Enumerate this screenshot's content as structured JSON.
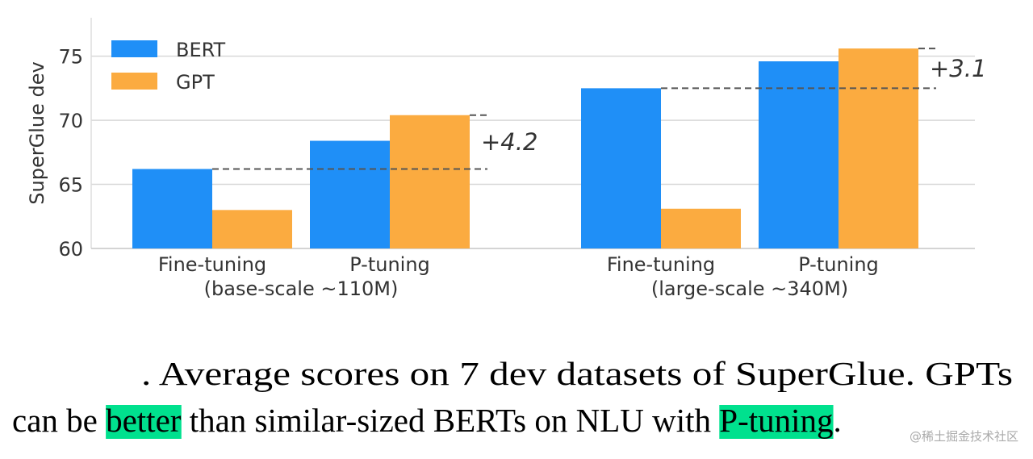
{
  "chart_data": {
    "type": "bar",
    "y_label": "SuperGlue dev",
    "categories": [
      "Fine-tuning",
      "P-tuning",
      "Fine-tuning",
      "P-tuning"
    ],
    "group_labels": [
      "(base-scale ~110M)",
      "(large-scale ~340M)"
    ],
    "series": [
      {
        "name": "BERT",
        "color": "#1f8ff7",
        "values": [
          66.2,
          68.4,
          72.5,
          74.6
        ]
      },
      {
        "name": "GPT",
        "color": "#fbab40",
        "values": [
          63.0,
          70.4,
          63.1,
          75.6
        ]
      }
    ],
    "annotations": [
      "+4.2",
      "+3.1"
    ],
    "ylim": [
      60,
      78
    ],
    "yticks": [
      60,
      65,
      70,
      75
    ],
    "grid": true,
    "legend": "upper left"
  },
  "caption": {
    "line1": ". Average scores on 7 dev datasets of SuperGlue. GPTs",
    "line2": [
      "can be ",
      "better",
      " than similar-sized BERTs on NLU with ",
      "P-tuning",
      "."
    ]
  },
  "watermark": "@稀土掘金技术社区"
}
